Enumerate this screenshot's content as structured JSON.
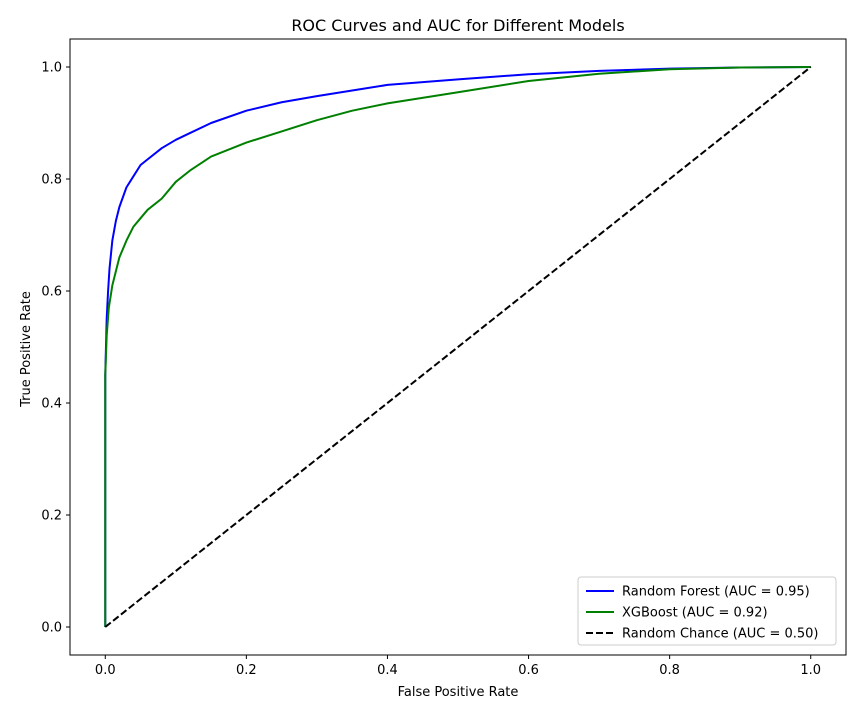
{
  "chart_data": {
    "type": "line",
    "title": "ROC Curves and AUC for Different Models",
    "xlabel": "False Positive Rate",
    "ylabel": "True Positive Rate",
    "xlim": [
      -0.05,
      1.05
    ],
    "ylim": [
      -0.05,
      1.05
    ],
    "xticks": [
      0.0,
      0.2,
      0.4,
      0.6,
      0.8,
      1.0
    ],
    "yticks": [
      0.0,
      0.2,
      0.4,
      0.6,
      0.8,
      1.0
    ],
    "xtick_labels": [
      "0.0",
      "0.2",
      "0.4",
      "0.6",
      "0.8",
      "1.0"
    ],
    "ytick_labels": [
      "0.0",
      "0.2",
      "0.4",
      "0.6",
      "0.8",
      "1.0"
    ],
    "grid": false,
    "legend_position": "lower-right",
    "series": [
      {
        "name": "Random Forest (AUC = 0.95)",
        "color": "#0000ff",
        "dash": "solid",
        "x": [
          0.0,
          0.0,
          0.002,
          0.004,
          0.006,
          0.01,
          0.015,
          0.02,
          0.03,
          0.04,
          0.05,
          0.06,
          0.08,
          0.1,
          0.12,
          0.15,
          0.2,
          0.25,
          0.3,
          0.35,
          0.4,
          0.5,
          0.6,
          0.7,
          0.8,
          0.9,
          1.0
        ],
        "y": [
          0.0,
          0.45,
          0.55,
          0.6,
          0.64,
          0.69,
          0.725,
          0.75,
          0.785,
          0.805,
          0.825,
          0.835,
          0.855,
          0.87,
          0.882,
          0.9,
          0.922,
          0.937,
          0.948,
          0.958,
          0.968,
          0.978,
          0.987,
          0.993,
          0.997,
          0.999,
          1.0
        ]
      },
      {
        "name": "XGBoost (AUC = 0.92)",
        "color": "#008000",
        "dash": "solid",
        "x": [
          0.0,
          0.0,
          0.002,
          0.005,
          0.01,
          0.015,
          0.02,
          0.03,
          0.04,
          0.05,
          0.06,
          0.08,
          0.1,
          0.12,
          0.15,
          0.2,
          0.25,
          0.3,
          0.35,
          0.4,
          0.5,
          0.6,
          0.7,
          0.8,
          0.9,
          1.0
        ],
        "y": [
          0.0,
          0.45,
          0.52,
          0.57,
          0.61,
          0.635,
          0.66,
          0.69,
          0.715,
          0.73,
          0.745,
          0.765,
          0.795,
          0.815,
          0.84,
          0.865,
          0.885,
          0.905,
          0.922,
          0.935,
          0.955,
          0.975,
          0.988,
          0.996,
          0.999,
          1.0
        ]
      },
      {
        "name": "Random Chance (AUC = 0.50)",
        "color": "#000000",
        "dash": "dashed",
        "x": [
          0.0,
          1.0
        ],
        "y": [
          0.0,
          1.0
        ]
      }
    ]
  }
}
